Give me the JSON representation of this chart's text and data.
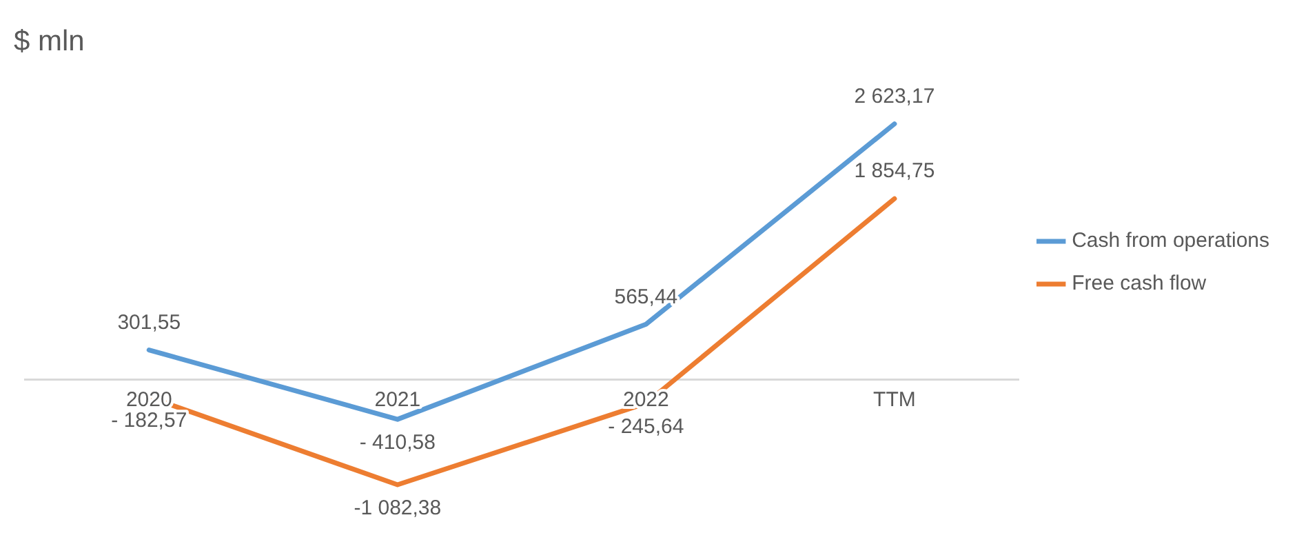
{
  "chart_data": {
    "type": "line",
    "title": "$ mln",
    "categories": [
      "2020",
      "2021",
      "2022",
      "TTM"
    ],
    "series": [
      {
        "name": "Cash from operations",
        "color": "#5b9bd5",
        "values": [
          301.55,
          -410.58,
          565.44,
          2623.17
        ],
        "value_labels": [
          "301,55",
          "- 410,58",
          "565,44",
          "2 623,17"
        ]
      },
      {
        "name": "Free cash flow",
        "color": "#ed7d31",
        "values": [
          -182.57,
          -1082.38,
          -245.64,
          1854.75
        ],
        "value_labels": [
          "- 182,57",
          "-1 082,38",
          "- 245,64",
          "1 854,75"
        ]
      }
    ],
    "legend": "right",
    "marker": "none",
    "line_style": "solid",
    "grid": false
  }
}
